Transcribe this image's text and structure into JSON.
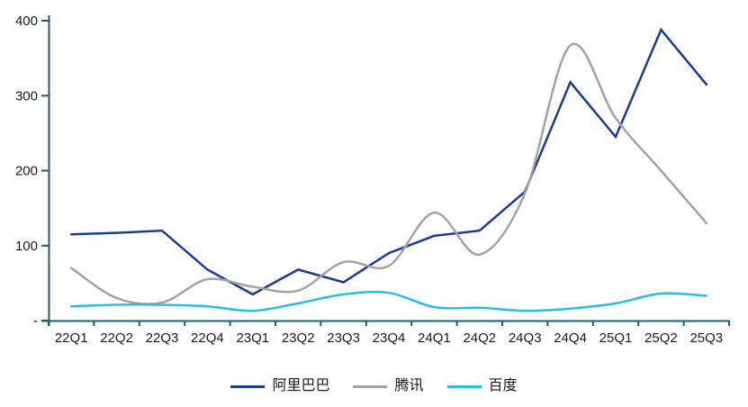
{
  "chart_data": {
    "type": "line",
    "title": "",
    "categories": [
      "22Q1",
      "22Q2",
      "22Q3",
      "22Q4",
      "23Q1",
      "23Q2",
      "23Q3",
      "23Q4",
      "24Q1",
      "24Q2",
      "24Q3",
      "24Q4",
      "25Q1",
      "25Q2",
      "25Q3"
    ],
    "series": [
      {
        "name": "阿里巴巴",
        "color": "#1A3C96",
        "smooth": false,
        "values": [
          115,
          117,
          120,
          68,
          35,
          68,
          51,
          90,
          113,
          120,
          172,
          318,
          245,
          388,
          315
        ]
      },
      {
        "name": "腾讯",
        "color": "#A3A3A3",
        "smooth": true,
        "values": [
          70,
          30,
          24,
          55,
          45,
          40,
          78,
          73,
          144,
          88,
          170,
          367,
          270,
          200,
          130
        ]
      },
      {
        "name": "百度",
        "color": "#27C0E0",
        "smooth": true,
        "values": [
          19,
          21,
          21,
          19,
          13,
          23,
          35,
          37,
          18,
          17,
          13,
          16,
          23,
          36,
          33
        ]
      }
    ],
    "y_axis": {
      "min": 0,
      "max": 400,
      "ticks": [
        {
          "value": 400,
          "label": "400"
        },
        {
          "value": 300,
          "label": "300"
        },
        {
          "value": 200,
          "label": "200"
        },
        {
          "value": 100,
          "label": "100"
        },
        {
          "value": 0,
          "label": "-"
        }
      ]
    },
    "xlabel": "",
    "ylabel": "",
    "grid": false,
    "legend_position": "bottom",
    "colors": {
      "axis": "#1F5C70",
      "text": "#1A1A1A",
      "background": "#FFFFFF"
    }
  }
}
